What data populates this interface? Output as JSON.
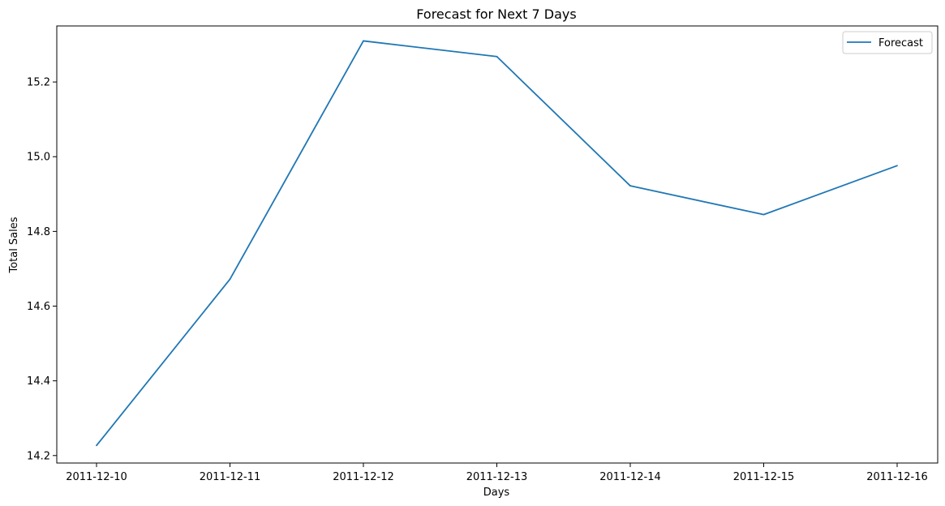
{
  "chart_data": {
    "type": "line",
    "title": "Forecast for Next 7 Days",
    "xlabel": "Days",
    "ylabel": "Total Sales",
    "categories": [
      "2011-12-10",
      "2011-12-11",
      "2011-12-12",
      "2011-12-13",
      "2011-12-14",
      "2011-12-15",
      "2011-12-16"
    ],
    "yticks": [
      "14.2",
      "14.4",
      "14.6",
      "14.8",
      "15.0",
      "15.2"
    ],
    "ylim": [
      14.18,
      15.35
    ],
    "grid": false,
    "legend_position": "top-right",
    "series": [
      {
        "name": "Forecast",
        "color": "#1f77b4",
        "values": [
          14.227,
          14.672,
          15.31,
          15.268,
          14.922,
          14.845,
          14.976
        ]
      }
    ]
  }
}
